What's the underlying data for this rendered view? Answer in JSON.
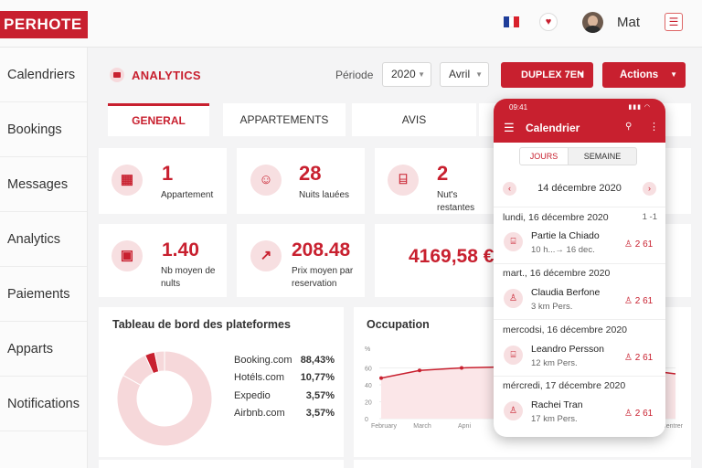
{
  "app": {
    "logo": "PERHOTE"
  },
  "topbar": {
    "user_name": "Mat",
    "flag_colors": [
      "#1f3d99",
      "#ffffff",
      "#d8212c"
    ]
  },
  "sidebar": {
    "items": [
      {
        "label": "Calendriers"
      },
      {
        "label": "Bookings"
      },
      {
        "label": "Messages"
      },
      {
        "label": "Analytics"
      },
      {
        "label": "Paiements"
      },
      {
        "label": "Apparts"
      },
      {
        "label": "Notifications"
      }
    ]
  },
  "header": {
    "title": "ANALYTICS",
    "periode_label": "Période",
    "year": "2020",
    "month": "Avril",
    "property_button": "DUPLEX 7EN",
    "actions_button": "Actions"
  },
  "tabs": [
    {
      "label": "GENERAL",
      "active": true
    },
    {
      "label": "APPARTEMENTS",
      "active": false
    },
    {
      "label": "AVIS",
      "active": false
    }
  ],
  "stats": {
    "appartement": {
      "value": "1",
      "label": "Appartement"
    },
    "nuits_louees": {
      "value": "28",
      "label": "Nuits lauées"
    },
    "nuits_restantes": {
      "value": "2",
      "label": "Nut's restantes"
    },
    "nb_moyen": {
      "value": "1.40",
      "label_line1": "Nb moyen de",
      "label_line2": "nults"
    },
    "prix_moyen": {
      "value": "208.48",
      "label_line1": "Prix moyen par",
      "label_line2": "reservation"
    },
    "revenue": {
      "value": "4169,58 €"
    }
  },
  "platforms": {
    "title": "Tableau de bord des plateformes",
    "chart_data": {
      "type": "pie",
      "categories": [
        "Booking.com",
        "Hotéls.com",
        "Expedio",
        "Airbnb.com"
      ],
      "values": [
        88.43,
        10.77,
        3.57,
        3.57
      ]
    },
    "legend": [
      {
        "name": "Booking.com",
        "value": "88,43%"
      },
      {
        "name": "Hotéls.com",
        "value": "10,77%"
      },
      {
        "name": "Expedio",
        "value": "3,57%"
      },
      {
        "name": "Airbnb.com",
        "value": "3,57%"
      }
    ],
    "colors": {
      "main": "#f6d8da",
      "accent": "#c8202f"
    }
  },
  "occupation": {
    "title": "Occupation",
    "y_unit": "%",
    "y_ticks": [
      "60",
      "40",
      "20",
      "0"
    ],
    "x_ticks": [
      "February",
      "March",
      "Apni"
    ],
    "right_tick": "Centrer",
    "chart_data": {
      "type": "area",
      "x": [
        "February",
        "March",
        "Apni"
      ],
      "values": [
        48,
        57,
        60
      ],
      "ylim": [
        0,
        80
      ]
    }
  },
  "phone": {
    "time": "09:41",
    "title": "Calendrier",
    "seg_jours": "JOURS",
    "seg_semaine": "SEMAINE",
    "current_date": "14 décembre 2020",
    "groups": [
      {
        "day": "lundi, 16 décembre 2020",
        "badge": "1 -1",
        "booking": {
          "name": "Partie la Chiado",
          "sub": "10 h...→ 16 dec.",
          "stat": "2 61"
        }
      },
      {
        "day": "mart., 16 décembre 2020",
        "badge": "",
        "booking": {
          "name": "Claudia Berfone",
          "sub": "3 km Pers.",
          "stat": "2 61"
        }
      },
      {
        "day": "mercodsi, 16 décembre 2020",
        "badge": "",
        "booking": {
          "name": "Leandro Persson",
          "sub": "12 km Pers.",
          "stat": "2 61"
        }
      },
      {
        "day": "mércredi, 17 décembre 2020",
        "badge": "",
        "booking": {
          "name": "Rachei Tran",
          "sub": "17 km Pers.",
          "stat": "2 61"
        }
      }
    ]
  }
}
